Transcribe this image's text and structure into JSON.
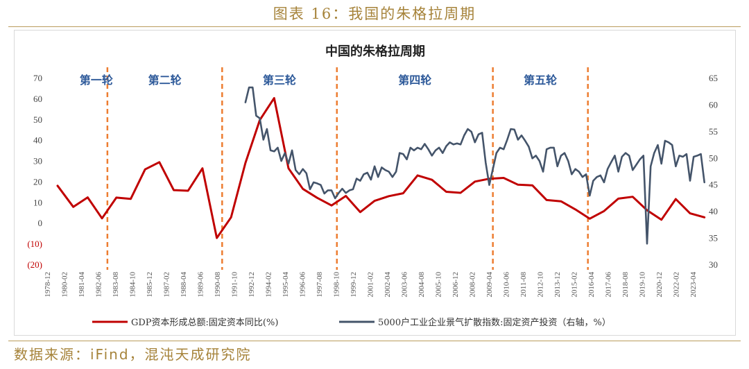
{
  "header": {
    "figure_title": "图表 16：我国的朱格拉周期"
  },
  "footer": {
    "source": "数据来源：iFind，混沌天成研究院"
  },
  "colors": {
    "red_series": "#c00000",
    "blue_series": "#44546a",
    "divider": "#ed7d31",
    "cycle_label": "#2e5a9a",
    "caption": "#a6833a"
  },
  "chart_data": {
    "type": "line",
    "title": "中国的朱格拉周期",
    "x_tick_labels": [
      "1978-12",
      "1980-02",
      "1981-04",
      "1982-06",
      "1983-08",
      "1984-10",
      "1985-12",
      "1987-02",
      "1988-04",
      "1989-06",
      "1990-08",
      "1991-10",
      "1992-12",
      "1994-02",
      "1995-04",
      "1996-06",
      "1997-08",
      "1998-10",
      "1999-12",
      "2001-02",
      "2002-04",
      "2003-06",
      "2004-08",
      "2005-10",
      "2006-12",
      "2008-02",
      "2009-04",
      "2010-06",
      "2011-08",
      "2012-10",
      "2013-12",
      "2015-02",
      "2016-04",
      "2017-06",
      "2018-08",
      "2019-10",
      "2020-12",
      "2022-02",
      "2023-04"
    ],
    "left_axis": {
      "ylim": [
        -20,
        70
      ],
      "ticks": [
        "70",
        "60",
        "50",
        "40",
        "30",
        "20",
        "10",
        "0",
        "(10)",
        "(20)"
      ]
    },
    "right_axis": {
      "ylim": [
        30,
        65
      ],
      "ticks": [
        "65",
        "60",
        "55",
        "50",
        "45",
        "40",
        "35",
        "30"
      ],
      "label": "右轴"
    },
    "cycle_labels": [
      "第一轮",
      "第二轮",
      "第三轮",
      "第四轮",
      "第五轮"
    ],
    "cycle_dividers": [
      1982.375,
      1990.375,
      1998.375,
      2009.25,
      2015.875
    ],
    "series": [
      {
        "name": "GDP资本形成总额:固定资本同比(%)",
        "axis": "left",
        "points": [
          [
            1978.9,
            18.2
          ],
          [
            1980,
            8
          ],
          [
            1981,
            12.6
          ],
          [
            1982,
            2.5
          ],
          [
            1983,
            12.5
          ],
          [
            1984,
            11.9
          ],
          [
            1985,
            26.1
          ],
          [
            1986,
            29.6
          ],
          [
            1987,
            16.1
          ],
          [
            1988,
            15.8
          ],
          [
            1989,
            26.6
          ],
          [
            1990,
            -7
          ],
          [
            1991,
            3
          ],
          [
            1992,
            29.2
          ],
          [
            1993,
            49.9
          ],
          [
            1994,
            60.5
          ],
          [
            1995,
            26.6
          ],
          [
            1996,
            16.7
          ],
          [
            1997,
            12.4
          ],
          [
            1998,
            8.7
          ],
          [
            1999,
            13.3
          ],
          [
            2000,
            5.5
          ],
          [
            2001,
            10.9
          ],
          [
            2002,
            13.2
          ],
          [
            2003,
            14.6
          ],
          [
            2004,
            23.2
          ],
          [
            2005,
            21.1
          ],
          [
            2006,
            15.3
          ],
          [
            2007,
            14.8
          ],
          [
            2008,
            20.2
          ],
          [
            2009,
            21.6
          ],
          [
            2010,
            22
          ],
          [
            2011,
            18.7
          ],
          [
            2012,
            18.4
          ],
          [
            2013,
            11.3
          ],
          [
            2014,
            10.7
          ],
          [
            2015,
            6.8
          ],
          [
            2016,
            2.3
          ],
          [
            2017,
            6
          ],
          [
            2018,
            12
          ],
          [
            2019,
            12.9
          ],
          [
            2020,
            6.4
          ],
          [
            2021,
            1.8
          ],
          [
            2022,
            11.8
          ],
          [
            2023,
            4.9
          ],
          [
            2024,
            3
          ]
        ]
      },
      {
        "name": "5000户工业企业景气扩散指数:固定资产投资（右轴，%）",
        "axis": "right",
        "points": [
          [
            1992,
            60.5
          ],
          [
            1992.25,
            63.3
          ],
          [
            1992.5,
            63.3
          ],
          [
            1992.75,
            58
          ],
          [
            1993,
            57.5
          ],
          [
            1993.25,
            53.5
          ],
          [
            1993.5,
            55.5
          ],
          [
            1993.75,
            51.5
          ],
          [
            1994,
            51.3
          ],
          [
            1994.25,
            52
          ],
          [
            1994.5,
            49.5
          ],
          [
            1994.75,
            51
          ],
          [
            1995,
            49
          ],
          [
            1995.25,
            51.5
          ],
          [
            1995.5,
            47.8
          ],
          [
            1995.75,
            47
          ],
          [
            1996,
            48
          ],
          [
            1996.25,
            47.2
          ],
          [
            1996.5,
            44.2
          ],
          [
            1996.75,
            45.5
          ],
          [
            1997,
            45.3
          ],
          [
            1997.25,
            45
          ],
          [
            1997.5,
            43.4
          ],
          [
            1997.75,
            44
          ],
          [
            1998,
            44
          ],
          [
            1998.25,
            42.5
          ],
          [
            1998.5,
            43.5
          ],
          [
            1998.75,
            44.3
          ],
          [
            1999,
            43.5
          ],
          [
            1999.25,
            44
          ],
          [
            1999.5,
            44.2
          ],
          [
            1999.75,
            46.2
          ],
          [
            2000,
            45.8
          ],
          [
            2000.25,
            47
          ],
          [
            2000.5,
            47.3
          ],
          [
            2000.75,
            46
          ],
          [
            2001,
            48.5
          ],
          [
            2001.25,
            46.5
          ],
          [
            2001.5,
            48.3
          ],
          [
            2001.75,
            47.8
          ],
          [
            2002,
            47.5
          ],
          [
            2002.25,
            46.5
          ],
          [
            2002.5,
            47.5
          ],
          [
            2002.75,
            51
          ],
          [
            2003,
            50.8
          ],
          [
            2003.25,
            49.8
          ],
          [
            2003.5,
            52
          ],
          [
            2003.75,
            51.5
          ],
          [
            2004,
            52
          ],
          [
            2004.25,
            51.7
          ],
          [
            2004.5,
            52.7
          ],
          [
            2004.75,
            51.7
          ],
          [
            2005,
            50.5
          ],
          [
            2005.25,
            51.5
          ],
          [
            2005.5,
            52
          ],
          [
            2005.75,
            51
          ],
          [
            2006,
            52.3
          ],
          [
            2006.25,
            53
          ],
          [
            2006.5,
            52.6
          ],
          [
            2006.75,
            52.8
          ],
          [
            2007,
            52.6
          ],
          [
            2007.25,
            54.3
          ],
          [
            2007.5,
            55.5
          ],
          [
            2007.75,
            55
          ],
          [
            2008,
            53
          ],
          [
            2008.25,
            54.5
          ],
          [
            2008.5,
            54.8
          ],
          [
            2008.75,
            49.2
          ],
          [
            2009,
            45
          ],
          [
            2009.25,
            48
          ],
          [
            2009.5,
            51
          ],
          [
            2009.75,
            52
          ],
          [
            2010,
            51.7
          ],
          [
            2010.25,
            53.5
          ],
          [
            2010.5,
            55.5
          ],
          [
            2010.75,
            55.4
          ],
          [
            2011,
            53.5
          ],
          [
            2011.25,
            54.3
          ],
          [
            2011.5,
            53.3
          ],
          [
            2011.75,
            52.2
          ],
          [
            2012,
            50
          ],
          [
            2012.25,
            50.5
          ],
          [
            2012.5,
            49.5
          ],
          [
            2012.75,
            47.5
          ],
          [
            2013,
            51.7
          ],
          [
            2013.25,
            52
          ],
          [
            2013.5,
            52
          ],
          [
            2013.75,
            48.5
          ],
          [
            2014,
            50.5
          ],
          [
            2014.25,
            51
          ],
          [
            2014.5,
            49.5
          ],
          [
            2014.75,
            47
          ],
          [
            2015,
            48
          ],
          [
            2015.25,
            47.5
          ],
          [
            2015.5,
            46.5
          ],
          [
            2015.75,
            47
          ],
          [
            2016,
            43
          ],
          [
            2016.25,
            45.8
          ],
          [
            2016.5,
            46.5
          ],
          [
            2016.75,
            46.8
          ],
          [
            2017,
            45.5
          ],
          [
            2017.25,
            48
          ],
          [
            2017.5,
            49.3
          ],
          [
            2017.75,
            50.5
          ],
          [
            2018,
            47.5
          ],
          [
            2018.25,
            50.3
          ],
          [
            2018.5,
            51
          ],
          [
            2018.75,
            50.5
          ],
          [
            2019,
            47.8
          ],
          [
            2019.25,
            48.8
          ],
          [
            2019.5,
            49.8
          ],
          [
            2019.75,
            50.5
          ],
          [
            2020,
            34
          ],
          [
            2020.25,
            48.5
          ],
          [
            2020.5,
            51
          ],
          [
            2020.75,
            52.5
          ],
          [
            2021,
            49
          ],
          [
            2021.25,
            53.3
          ],
          [
            2021.5,
            53
          ],
          [
            2021.75,
            52.5
          ],
          [
            2022,
            48.5
          ],
          [
            2022.25,
            50.5
          ],
          [
            2022.5,
            50.3
          ],
          [
            2022.75,
            50.8
          ],
          [
            2023,
            45.8
          ],
          [
            2023.25,
            50.3
          ],
          [
            2023.5,
            50.5
          ],
          [
            2023.75,
            50.8
          ],
          [
            2024,
            45.5
          ]
        ]
      }
    ]
  }
}
